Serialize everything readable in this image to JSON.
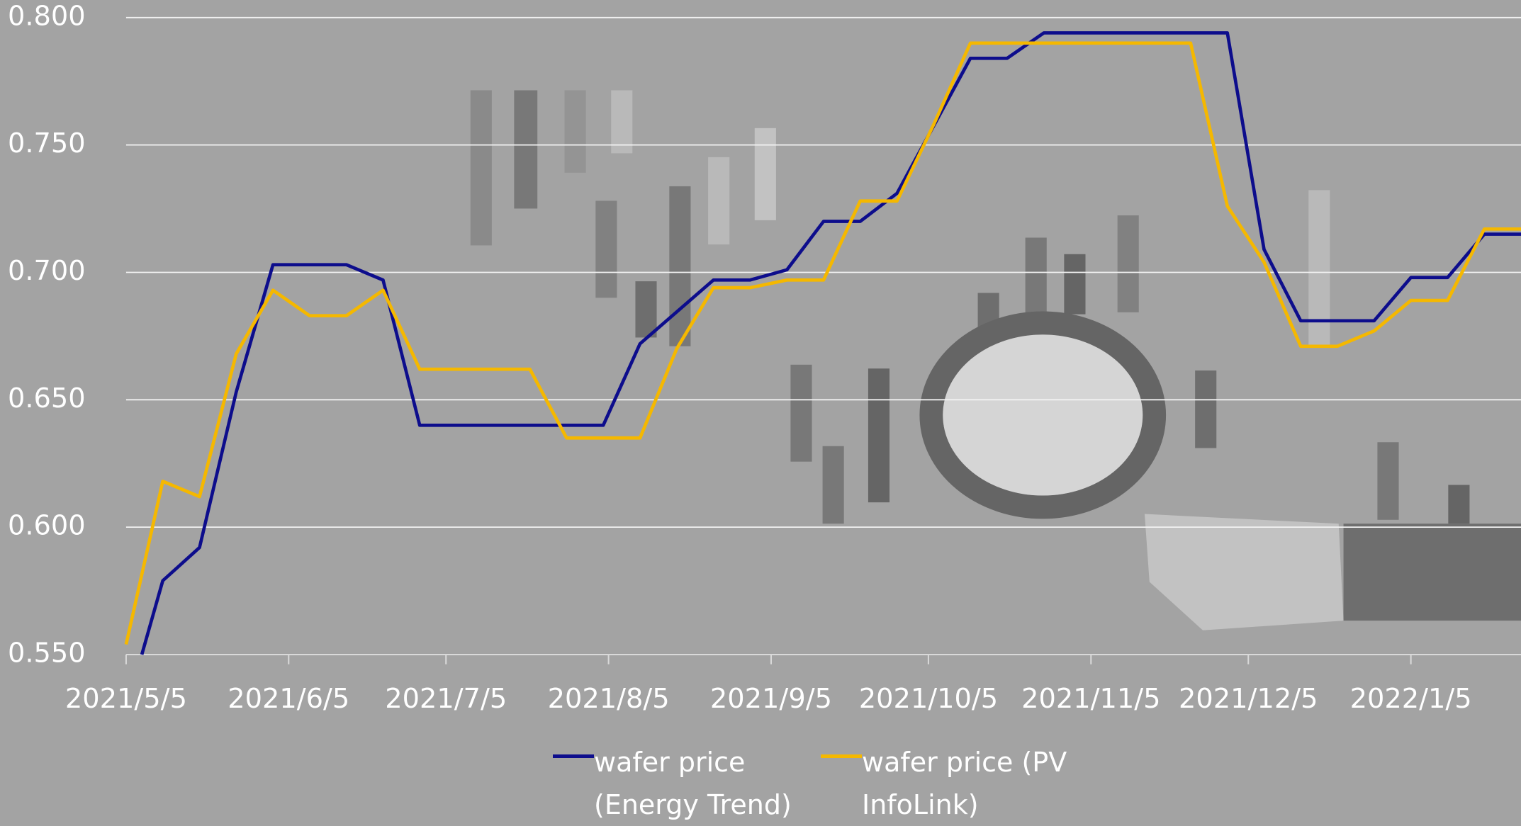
{
  "chart_data": {
    "type": "line",
    "xlim": [
      "2021/5/5",
      "2022/1/26"
    ],
    "xticks": [
      "2021/5/5",
      "2021/6/5",
      "2021/7/5",
      "2021/8/5",
      "2021/9/5",
      "2021/10/5",
      "2021/11/5",
      "2021/12/5",
      "2022/1/5"
    ],
    "ylim": [
      0.55,
      0.8
    ],
    "yticks": [
      {
        "value": 0.55,
        "label": "0.550"
      },
      {
        "value": 0.6,
        "label": "0.600"
      },
      {
        "value": 0.65,
        "label": "0.650"
      },
      {
        "value": 0.7,
        "label": "0.700"
      },
      {
        "value": 0.75,
        "label": "0.750"
      },
      {
        "value": 0.8,
        "label": "0.800"
      }
    ],
    "grid": true,
    "series": [
      {
        "name": "wafer price (Energy Trend)",
        "color": "#0d0d8c",
        "x": [
          "2021/5/8",
          "2021/5/12",
          "2021/5/19",
          "2021/5/26",
          "2021/6/2",
          "2021/6/16",
          "2021/6/23",
          "2021/6/30",
          "2021/8/4",
          "2021/8/11",
          "2021/8/25",
          "2021/9/1",
          "2021/9/8",
          "2021/9/15",
          "2021/9/22",
          "2021/9/29",
          "2021/10/13",
          "2021/10/20",
          "2021/10/27",
          "2021/12/1",
          "2021/12/8",
          "2021/12/15",
          "2021/12/29",
          "2022/1/5",
          "2022/1/12",
          "2022/1/19",
          "2022/1/26"
        ],
        "values": [
          0.55,
          0.579,
          0.592,
          0.653,
          0.703,
          0.703,
          0.697,
          0.64,
          0.64,
          0.672,
          0.697,
          0.697,
          0.701,
          0.72,
          0.72,
          0.731,
          0.784,
          0.784,
          0.794,
          0.794,
          0.709,
          0.681,
          0.681,
          0.698,
          0.698,
          0.715,
          0.715
        ]
      },
      {
        "name": "wafer price (PV InfoLink)",
        "color": "#f5b800",
        "x": [
          "2021/5/5",
          "2021/5/12",
          "2021/5/19",
          "2021/5/26",
          "2021/6/2",
          "2021/6/9",
          "2021/6/16",
          "2021/6/23",
          "2021/6/30",
          "2021/7/21",
          "2021/7/28",
          "2021/8/11",
          "2021/8/18",
          "2021/8/25",
          "2021/9/1",
          "2021/9/8",
          "2021/9/15",
          "2021/9/22",
          "2021/9/29",
          "2021/10/6",
          "2021/10/13",
          "2021/11/24",
          "2021/12/1",
          "2021/12/8",
          "2021/12/15",
          "2021/12/22",
          "2021/12/29",
          "2022/1/5",
          "2022/1/12",
          "2022/1/19",
          "2022/1/26"
        ],
        "values": [
          0.554,
          0.618,
          0.612,
          0.668,
          0.693,
          0.683,
          0.683,
          0.693,
          0.662,
          0.662,
          0.635,
          0.635,
          0.67,
          0.694,
          0.694,
          0.697,
          0.697,
          0.728,
          0.728,
          0.758,
          0.79,
          0.79,
          0.726,
          0.704,
          0.671,
          0.671,
          0.677,
          0.689,
          0.689,
          0.717,
          0.717
        ]
      }
    ]
  }
}
